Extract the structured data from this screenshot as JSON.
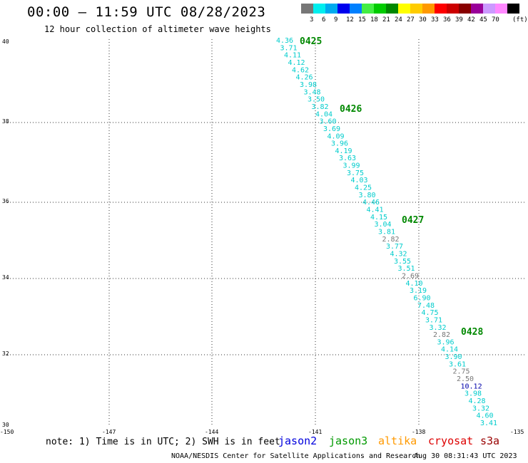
{
  "header": {
    "title": "00:00 – 11:59 UTC 08/28/2023",
    "subtitle": "12 hour collection of altimeter wave heights"
  },
  "legend": {
    "unit": "(ft)",
    "colors": [
      "#777777",
      "#00eeee",
      "#00aaee",
      "#0000ee",
      "#0080ff",
      "#44ee44",
      "#00cc00",
      "#008800",
      "#ffff00",
      "#ffcc00",
      "#ff9900",
      "#ff0000",
      "#cc0000",
      "#880000",
      "#990099",
      "#cc99ff",
      "#ff88ff",
      "#000000"
    ],
    "labels": [
      "3",
      "6",
      "9",
      "12",
      "15",
      "18",
      "21",
      "24",
      "27",
      "30",
      "33",
      "36",
      "39",
      "42",
      "45",
      "70"
    ]
  },
  "axes": {
    "lat_labels": [
      "40",
      "38",
      "36",
      "34",
      "32",
      "30"
    ],
    "lon_labels": [
      "-150",
      "-147",
      "-144",
      "-141",
      "-138",
      "-135"
    ]
  },
  "time_marks": [
    {
      "text": "0425",
      "color": "#008800"
    },
    {
      "text": "0426",
      "color": "#008800"
    },
    {
      "text": "0427",
      "color": "#008800"
    },
    {
      "text": "0428",
      "color": "#008800"
    }
  ],
  "track": {
    "values": [
      {
        "v": "4.36",
        "c": "#00cccc"
      },
      {
        "v": "3.71",
        "c": "#00cccc"
      },
      {
        "v": "4.11",
        "c": "#00cccc"
      },
      {
        "v": "4.12",
        "c": "#00cccc"
      },
      {
        "v": "4.62",
        "c": "#00cccc"
      },
      {
        "v": "4.26",
        "c": "#00cccc"
      },
      {
        "v": "3.98",
        "c": "#00cccc"
      },
      {
        "v": "3.48",
        "c": "#00cccc"
      },
      {
        "v": "3.50",
        "c": "#00cccc"
      },
      {
        "v": "3.82",
        "c": "#00cccc"
      },
      {
        "v": "4.04",
        "c": "#00cccc"
      },
      {
        "v": "3.60",
        "c": "#00cccc"
      },
      {
        "v": "3.69",
        "c": "#00cccc"
      },
      {
        "v": "4.09",
        "c": "#00cccc"
      },
      {
        "v": "3.96",
        "c": "#00cccc"
      },
      {
        "v": "4.19",
        "c": "#00cccc"
      },
      {
        "v": "3.63",
        "c": "#00cccc"
      },
      {
        "v": "3.99",
        "c": "#00cccc"
      },
      {
        "v": "3.75",
        "c": "#00cccc"
      },
      {
        "v": "4.03",
        "c": "#00cccc"
      },
      {
        "v": "4.25",
        "c": "#00cccc"
      },
      {
        "v": "3.80",
        "c": "#00cccc"
      },
      {
        "v": "4.46",
        "c": "#00cccc"
      },
      {
        "v": "4.41",
        "c": "#00cccc"
      },
      {
        "v": "4.15",
        "c": "#00cccc"
      },
      {
        "v": "3.04",
        "c": "#00cccc"
      },
      {
        "v": "3.81",
        "c": "#00cccc"
      },
      {
        "v": "2.82",
        "c": "#777777"
      },
      {
        "v": "3.77",
        "c": "#00cccc"
      },
      {
        "v": "4.32",
        "c": "#00cccc"
      },
      {
        "v": "3.55",
        "c": "#00cccc"
      },
      {
        "v": "3.51",
        "c": "#00cccc"
      },
      {
        "v": "2.69",
        "c": "#777777"
      },
      {
        "v": "4.10",
        "c": "#00cccc"
      },
      {
        "v": "3.19",
        "c": "#00cccc"
      },
      {
        "v": "6.90",
        "c": "#00cccc"
      },
      {
        "v": "7.48",
        "c": "#00cccc"
      },
      {
        "v": "4.75",
        "c": "#00cccc"
      },
      {
        "v": "3.71",
        "c": "#00cccc"
      },
      {
        "v": "3.32",
        "c": "#00cccc"
      },
      {
        "v": "2.82",
        "c": "#777777"
      },
      {
        "v": "3.96",
        "c": "#00cccc"
      },
      {
        "v": "4.14",
        "c": "#00cccc"
      },
      {
        "v": "3.90",
        "c": "#00cccc"
      },
      {
        "v": "3.61",
        "c": "#00cccc"
      },
      {
        "v": "2.75",
        "c": "#777777"
      },
      {
        "v": "2.50",
        "c": "#777777"
      },
      {
        "v": "10.12",
        "c": "#0000aa"
      },
      {
        "v": "3.98",
        "c": "#00cccc"
      },
      {
        "v": "4.28",
        "c": "#00cccc"
      },
      {
        "v": "3.32",
        "c": "#00cccc"
      },
      {
        "v": "4.60",
        "c": "#00cccc"
      },
      {
        "v": "3.41",
        "c": "#00cccc"
      }
    ]
  },
  "footer": {
    "note": "note: 1) Time is in UTC; 2) SWH is in feet",
    "satellites": [
      {
        "name": "jason2",
        "color": "#0000dd"
      },
      {
        "name": "jason3",
        "color": "#009900"
      },
      {
        "name": "altika",
        "color": "#ff9900"
      },
      {
        "name": "cryosat",
        "color": "#dd0000"
      },
      {
        "name": "s3a",
        "color": "#990000"
      }
    ],
    "credit": "NOAA/NESDIS Center for Satellite Applications and Research",
    "timestamp": "Aug 30 08:31:43 UTC 2023"
  }
}
